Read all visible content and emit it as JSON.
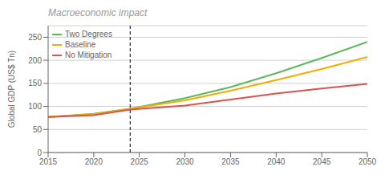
{
  "chart_data": {
    "type": "line",
    "title": "Macroeconomic impact",
    "ylabel": "Global GDP (US$ Tn)",
    "x": [
      2015,
      2020,
      2024,
      2030,
      2035,
      2040,
      2045,
      2050
    ],
    "series": [
      {
        "name": "Two Degrees",
        "color": "#5cb85c",
        "values": [
          77,
          84,
          95,
          118,
          142,
          172,
          205,
          240
        ]
      },
      {
        "name": "Baseline",
        "color": "#f0ad00",
        "values": [
          77,
          83,
          95,
          113,
          134,
          157,
          181,
          207
        ]
      },
      {
        "name": "No Mitigation",
        "color": "#d9534f",
        "values": [
          77,
          81,
          93,
          102,
          115,
          128,
          139,
          149
        ]
      }
    ],
    "xlim": [
      2015,
      2050
    ],
    "xticks": [
      2015,
      2020,
      2025,
      2030,
      2035,
      2040,
      2045,
      2050
    ],
    "ylim": [
      0,
      275
    ],
    "yticks": [
      0,
      50,
      100,
      150,
      200,
      250
    ],
    "vline_x": 2024,
    "grid": true,
    "legend": "upper left"
  }
}
